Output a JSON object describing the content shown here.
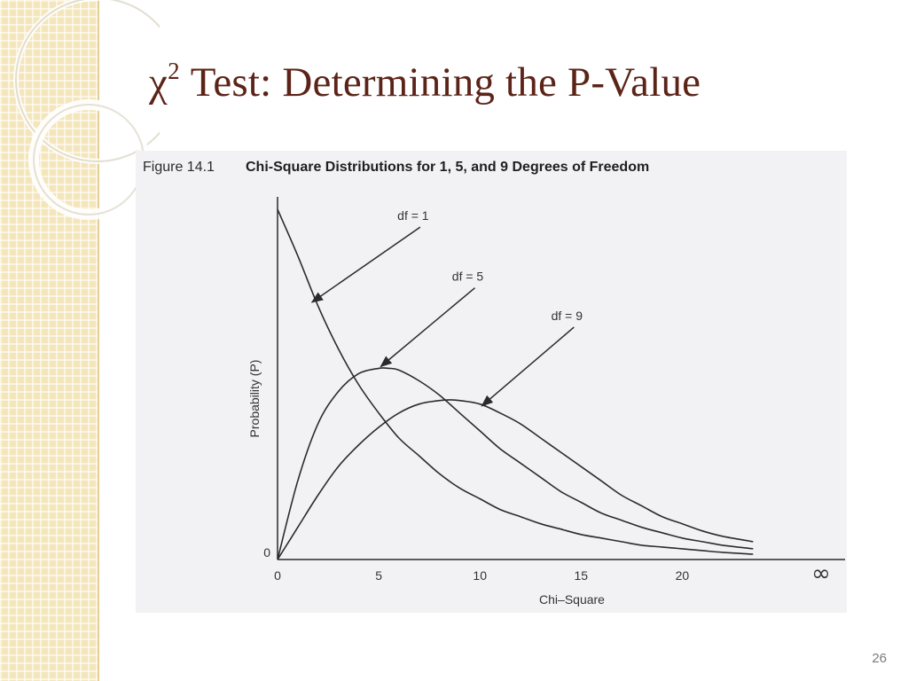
{
  "slide": {
    "title_main": "χ",
    "title_sup": "2",
    "title_rest": " Test: Determining the P-Value",
    "page_number": "26"
  },
  "colors": {
    "title": "#5c2418",
    "side_strip": "#f3e6bc",
    "figure_bg": "#f2f2f4",
    "curve": "#2b2b2b"
  },
  "figure": {
    "number": "Figure 14.1",
    "title": "Chi-Square Distributions for 1, 5, and 9 Degrees of Freedom"
  },
  "chart_data": {
    "type": "line",
    "title": "Chi-Square Distributions for 1, 5, and 9 Degrees of Freedom",
    "xlabel": "Chi–Square",
    "ylabel": "Probability (P)",
    "xlim": [
      0,
      24
    ],
    "ylim": [
      0,
      1
    ],
    "x_ticks": [
      {
        "value": 0,
        "label": "0"
      },
      {
        "value": 5,
        "label": "5"
      },
      {
        "value": 10,
        "label": "10"
      },
      {
        "value": 15,
        "label": "15"
      },
      {
        "value": 20,
        "label": "20"
      }
    ],
    "x_axis_end_label": "∞",
    "y_ticks": [
      {
        "value": 0,
        "label": "0"
      }
    ],
    "grid": false,
    "legend": "none",
    "series": [
      {
        "name": "df = 1",
        "x": [
          0,
          1,
          2,
          3,
          4,
          5,
          6,
          7,
          8,
          9,
          10,
          11,
          12,
          13,
          14,
          15,
          16,
          17,
          18,
          19,
          20,
          21,
          22,
          23.5
        ],
        "y": [
          0.98,
          0.85,
          0.71,
          0.59,
          0.49,
          0.41,
          0.34,
          0.29,
          0.24,
          0.2,
          0.17,
          0.14,
          0.12,
          0.1,
          0.085,
          0.07,
          0.06,
          0.05,
          0.04,
          0.035,
          0.03,
          0.025,
          0.02,
          0.015
        ],
        "annotation": {
          "label": "df = 1",
          "x": 6.7,
          "y": 0.95,
          "arrow_to_x": 1.7,
          "arrow_to_y": 0.72
        }
      },
      {
        "name": "df = 5",
        "x": [
          0,
          1,
          2,
          3,
          4,
          5,
          5.5,
          6,
          7,
          8,
          9,
          10,
          11,
          12,
          13,
          14,
          15,
          16,
          17,
          18,
          19,
          20,
          21,
          22,
          23.5
        ],
        "y": [
          0,
          0.22,
          0.38,
          0.47,
          0.52,
          0.535,
          0.535,
          0.53,
          0.5,
          0.46,
          0.41,
          0.36,
          0.31,
          0.27,
          0.23,
          0.19,
          0.16,
          0.13,
          0.11,
          0.09,
          0.075,
          0.06,
          0.05,
          0.04,
          0.03
        ],
        "annotation": {
          "label": "df = 5",
          "x": 9.4,
          "y": 0.78,
          "arrow_to_x": 5.1,
          "arrow_to_y": 0.54
        }
      },
      {
        "name": "df = 9",
        "x": [
          0,
          1,
          2,
          3,
          4,
          5,
          6,
          7,
          8,
          8.5,
          9,
          10,
          11,
          12,
          13,
          14,
          15,
          16,
          17,
          18,
          19,
          20,
          21,
          22,
          23.5
        ],
        "y": [
          0,
          0.09,
          0.18,
          0.26,
          0.32,
          0.37,
          0.41,
          0.435,
          0.445,
          0.447,
          0.445,
          0.435,
          0.41,
          0.38,
          0.34,
          0.3,
          0.26,
          0.22,
          0.18,
          0.15,
          0.12,
          0.1,
          0.08,
          0.065,
          0.05
        ],
        "annotation": {
          "label": "df = 9",
          "x": 14.3,
          "y": 0.67,
          "arrow_to_x": 10.1,
          "arrow_to_y": 0.43
        }
      }
    ]
  }
}
